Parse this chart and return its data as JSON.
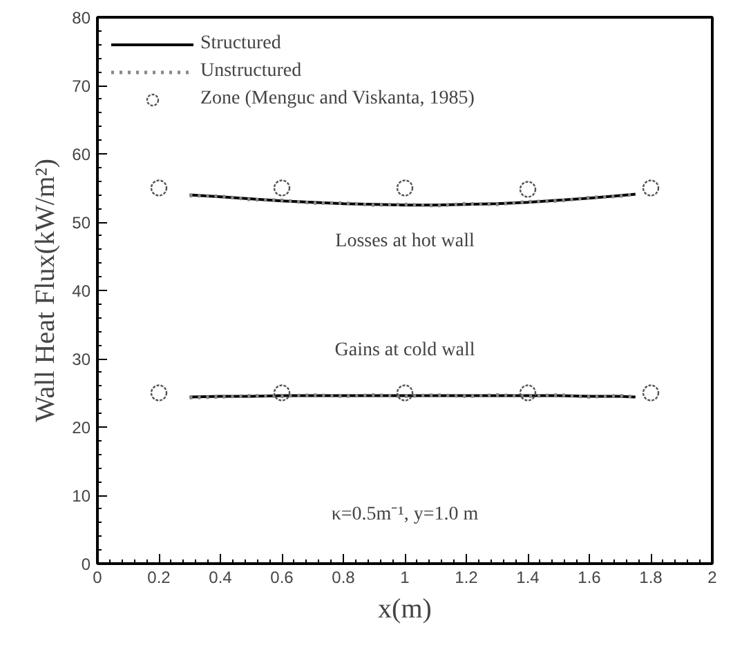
{
  "chart_data": {
    "type": "line",
    "xlabel": "x(m)",
    "ylabel": "Wall Heat Flux(kW/m²)",
    "xlim": [
      0,
      2
    ],
    "ylim": [
      0,
      80
    ],
    "xticks": [
      0,
      0.2,
      0.4,
      0.6,
      0.8,
      1,
      1.2,
      1.4,
      1.6,
      1.8,
      2
    ],
    "yticks": [
      0,
      10,
      20,
      30,
      40,
      50,
      60,
      70,
      80
    ],
    "grid": false,
    "legend": "top left",
    "series": [
      {
        "name": "Structured",
        "color": "#000000",
        "line_style": "solid",
        "x": [
          0.3,
          0.4,
          0.5,
          0.6,
          0.7,
          0.8,
          0.9,
          1.0,
          1.1,
          1.2,
          1.3,
          1.4,
          1.5,
          1.6,
          1.7,
          1.75
        ],
        "values": [
          54.0,
          53.7,
          53.4,
          53.1,
          52.9,
          52.7,
          52.6,
          52.5,
          52.5,
          52.6,
          52.7,
          52.9,
          53.2,
          53.5,
          53.9,
          54.1
        ]
      },
      {
        "color": "#000000",
        "line_style": "solid",
        "x": [
          0.3,
          0.4,
          0.5,
          0.6,
          0.7,
          0.8,
          0.9,
          1.0,
          1.1,
          1.2,
          1.3,
          1.4,
          1.5,
          1.6,
          1.7,
          1.75
        ],
        "values": [
          24.4,
          24.5,
          24.5,
          24.6,
          24.6,
          24.6,
          24.6,
          24.6,
          24.6,
          24.6,
          24.6,
          24.6,
          24.6,
          24.5,
          24.5,
          24.4
        ]
      },
      {
        "name": "Unstructured",
        "color": "#888888",
        "line_style": "dotted",
        "x": [
          0.3,
          0.4,
          0.5,
          0.6,
          0.7,
          0.8,
          0.9,
          1.0,
          1.1,
          1.2,
          1.3,
          1.4,
          1.5,
          1.6,
          1.7,
          1.75
        ],
        "values": [
          53.9,
          53.8,
          53.3,
          53.2,
          52.8,
          52.8,
          52.5,
          52.6,
          52.4,
          52.7,
          52.6,
          53.0,
          53.1,
          53.6,
          53.8,
          54.1
        ]
      },
      {
        "color": "#888888",
        "line_style": "dotted",
        "x": [
          0.3,
          0.4,
          0.5,
          0.6,
          0.7,
          0.8,
          0.9,
          1.0,
          1.1,
          1.2,
          1.3,
          1.4,
          1.5,
          1.6,
          1.7,
          1.75
        ],
        "values": [
          24.3,
          24.4,
          24.6,
          24.5,
          24.7,
          24.5,
          24.7,
          24.5,
          24.7,
          24.5,
          24.7,
          24.5,
          24.7,
          24.4,
          24.6,
          24.4
        ]
      },
      {
        "name": "Zone (Menguc and Viskanta, 1985)",
        "type": "scatter",
        "marker": "circle",
        "color": "#555555",
        "x": [
          0.2,
          0.6,
          1.0,
          1.4,
          1.8
        ],
        "values": [
          55,
          55,
          55,
          54.8,
          55
        ]
      },
      {
        "type": "scatter",
        "marker": "circle",
        "color": "#555555",
        "x": [
          0.2,
          0.6,
          1.0,
          1.4,
          1.8
        ],
        "values": [
          25,
          25,
          25,
          25,
          25
        ]
      }
    ],
    "annotations": [
      "Losses at hot wall",
      "Gains at cold wall",
      "κ=0.5m⁻¹, y=1.0 m"
    ]
  }
}
